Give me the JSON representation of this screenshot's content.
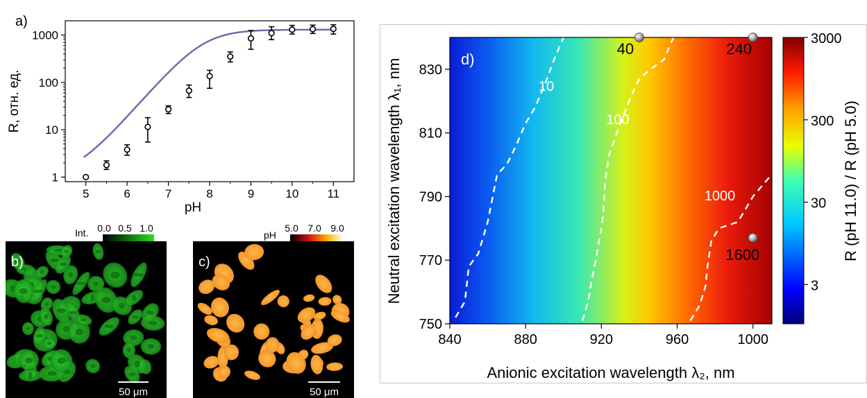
{
  "chart_data": [
    {
      "panel": "a",
      "type": "scatter",
      "panel_label": "a)",
      "xlabel": "pH",
      "ylabel": "R, отн. ед.",
      "xlim": [
        4.5,
        11.5
      ],
      "ylim": [
        0.8,
        2000
      ],
      "yscale": "log",
      "xticks": [
        "5",
        "6",
        "7",
        "8",
        "9",
        "10",
        "11"
      ],
      "yticks": [
        "1",
        "10",
        "100",
        "1000"
      ],
      "x": [
        5.0,
        5.5,
        6.0,
        6.5,
        7.0,
        7.5,
        8.0,
        8.5,
        9.0,
        9.5,
        10.0,
        10.5,
        11.0
      ],
      "y": [
        1.0,
        1.8,
        3.8,
        11.5,
        27,
        67,
        135,
        350,
        850,
        1100,
        1300,
        1330,
        1350
      ],
      "y_low": [
        0.95,
        1.45,
        2.9,
        5.5,
        22,
        48,
        75,
        270,
        500,
        800,
        1050,
        1080,
        1050
      ],
      "y_high": [
        1.05,
        2.2,
        4.8,
        18,
        32,
        88,
        180,
        440,
        1250,
        1500,
        1600,
        1620,
        1650
      ],
      "fit": {
        "bottom": 1.0,
        "top": 1300,
        "pKa": 7.85,
        "slope": 1.0
      },
      "line_color": "#6a6ea8"
    },
    {
      "panel": "b",
      "type": "image",
      "panel_label": "b)",
      "colorbar_label": "Int.",
      "colorbar_ticks": [
        "0.0",
        "0.5",
        "1.0"
      ],
      "scalebar_label": "50 μm"
    },
    {
      "panel": "c",
      "type": "image",
      "panel_label": "c)",
      "colorbar_label": "pH",
      "colorbar_ticks": [
        "5.0",
        "7.0",
        "9.0"
      ],
      "scalebar_label": "50 μm"
    },
    {
      "panel": "d",
      "type": "heatmap",
      "panel_label": "d)",
      "xlabel": "Anionic excitation wavelength λ₂, nm",
      "ylabel": "Neutral excitation wavelength λ₁, nm",
      "xlim": [
        840,
        1010
      ],
      "ylim": [
        750,
        840
      ],
      "xticks": [
        "840",
        "880",
        "920",
        "960",
        "1000"
      ],
      "yticks": [
        "750",
        "770",
        "790",
        "810",
        "830"
      ],
      "colorbar_label": "R (pH 11.0) / R (pH 5.0)",
      "colorbar_ticks": [
        "3",
        "30",
        "300",
        "3000"
      ],
      "colorbar_range": [
        1,
        3000
      ],
      "contours": [
        {
          "label": "10",
          "points": [
            [
              843,
              752
            ],
            [
              848,
              757
            ],
            [
              850,
              768
            ],
            [
              855,
              772
            ],
            [
              860,
              782
            ],
            [
              865,
              797
            ],
            [
              870,
              800
            ],
            [
              875,
              806
            ],
            [
              880,
              813
            ],
            [
              885,
              818
            ],
            [
              890,
              825
            ],
            [
              895,
              833
            ],
            [
              900,
              840
            ]
          ]
        },
        {
          "label": "100",
          "points": [
            [
              910,
              751
            ],
            [
              913,
              757
            ],
            [
              915,
              764
            ],
            [
              917,
              770
            ],
            [
              920,
              780
            ],
            [
              921,
              785
            ],
            [
              922,
              795
            ],
            [
              924,
              803
            ],
            [
              927,
              808
            ],
            [
              930,
              813
            ],
            [
              936,
              822
            ],
            [
              940,
              827
            ],
            [
              946,
              830
            ],
            [
              953,
              833
            ],
            [
              958,
              840
            ]
          ]
        },
        {
          "label": "1000",
          "points": [
            [
              967,
              751
            ],
            [
              972,
              756
            ],
            [
              975,
              762
            ],
            [
              976,
              768
            ],
            [
              978,
              776
            ],
            [
              982,
              780
            ],
            [
              992,
              782
            ],
            [
              1000,
              790
            ],
            [
              1010,
              797
            ]
          ]
        }
      ],
      "markers": [
        {
          "x": 940,
          "y": 840,
          "label": "40"
        },
        {
          "x": 1000,
          "y": 840,
          "label": "240"
        },
        {
          "x": 1000,
          "y": 777,
          "label": "1600"
        }
      ]
    }
  ]
}
